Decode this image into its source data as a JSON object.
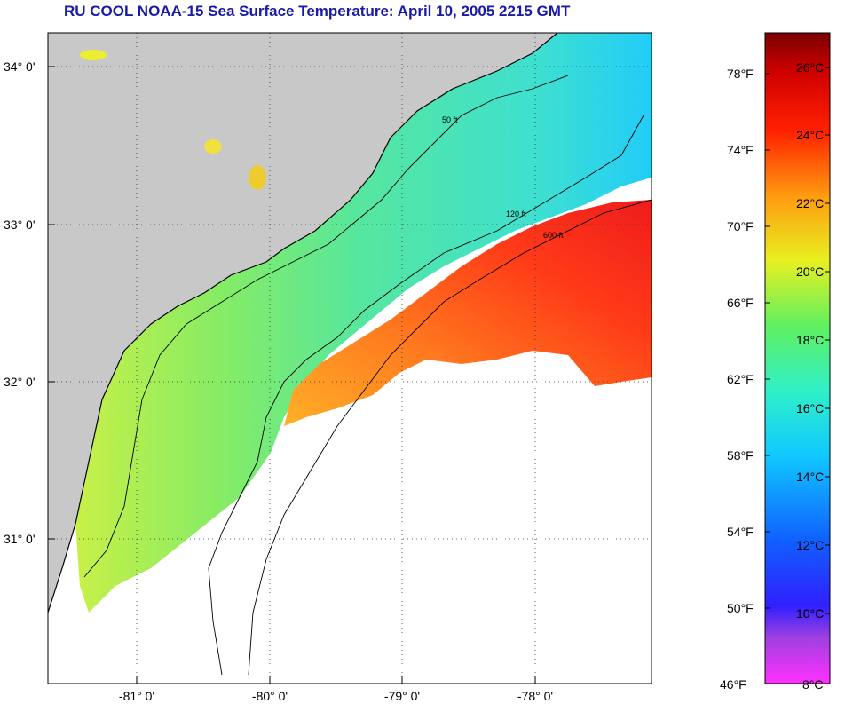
{
  "title": "RU COOL  NOAA-15  Sea Surface Temperature:  April 10, 2005 2215 GMT",
  "lat_ticks": [
    "34° 0'",
    "33° 0'",
    "32° 0'",
    "31° 0'"
  ],
  "lon_ticks": [
    "-81° 0'",
    "-80° 0'",
    "-79° 0'",
    "-78° 0'"
  ],
  "contour_labels": [
    "50 ft",
    "120 ft",
    "600 ft"
  ],
  "colorbar": {
    "fahrenheit": [
      "78°F",
      "74°F",
      "70°F",
      "66°F",
      "62°F",
      "58°F",
      "54°F",
      "50°F",
      "46°F"
    ],
    "celsius": [
      "26°C",
      "24°C",
      "22°C",
      "20°C",
      "18°C",
      "16°C",
      "14°C",
      "12°C",
      "10°C",
      "8°C"
    ]
  },
  "colors": {
    "title": "#1a1aa8",
    "land": "#c8c8c8",
    "nodata": "#ffffff",
    "warm": "#ff3a1e",
    "mid": "#e8e82a",
    "cool": "#50e0a0"
  }
}
